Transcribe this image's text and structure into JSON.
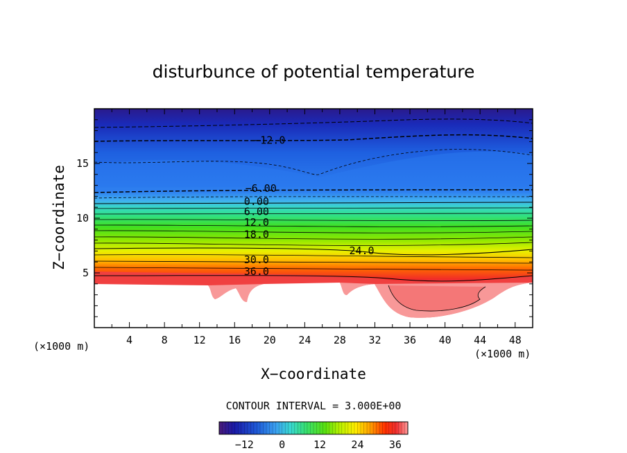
{
  "chart_data": {
    "type": "contour",
    "title": "disturbunce of potential temperature",
    "xlabel": "X−coordinate",
    "ylabel": "Z−coordinate",
    "x_unit": "(×1000 m)",
    "y_unit": "(×1000 m)",
    "xlim": [
      0,
      50
    ],
    "ylim": [
      0,
      20
    ],
    "x_ticks": [
      "4",
      "8",
      "12",
      "16",
      "20",
      "24",
      "28",
      "32",
      "36",
      "40",
      "44",
      "48"
    ],
    "y_ticks": [
      "5",
      "10",
      "15"
    ],
    "contour_interval_label": "CONTOUR INTERVAL = 3.000E+00",
    "contour_interval": 3,
    "contour_labels": [
      "−12.0",
      "−6.00",
      "0.00",
      "6.00",
      "12.0",
      "18.0",
      "24.0",
      "30.0",
      "36.0"
    ],
    "colorbar": {
      "min": -20,
      "max": 40,
      "ticks": [
        "−12",
        "0",
        "12",
        "24",
        "36"
      ],
      "colors": [
        "#4a1a7a",
        "#1a1aa8",
        "#1e5ad8",
        "#3aa0f0",
        "#38d8d0",
        "#38e070",
        "#58e010",
        "#b8f000",
        "#ffee00",
        "#ffa000",
        "#ff3000",
        "#f03030",
        "#ff9a9a"
      ]
    },
    "grid": false,
    "legend": "colorbar-bottom"
  }
}
